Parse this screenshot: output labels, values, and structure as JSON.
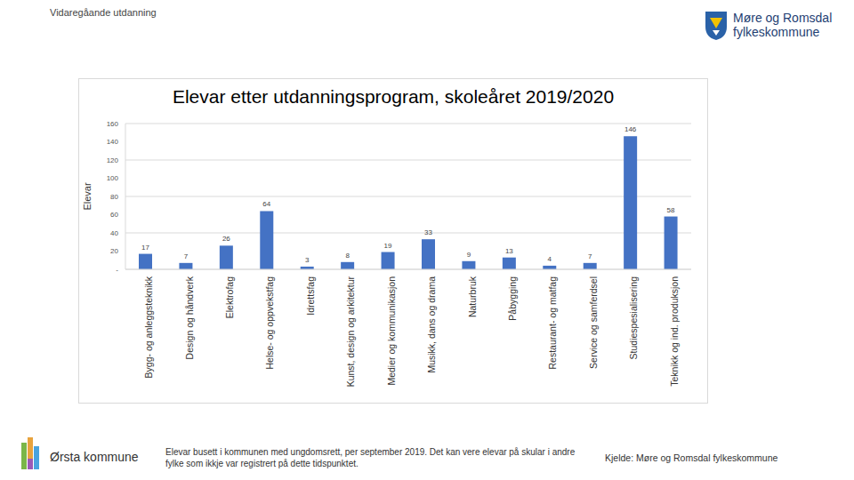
{
  "chart_data": {
    "type": "bar",
    "title": "Elevar etter utdanningsprogram, skoleåret 2019/2020",
    "y_label": "Elevar",
    "categories": [
      "Bygg- og anleggsteknikk",
      "Design og håndverk",
      "Elektrofag",
      "Helse- og oppvekstfag",
      "Idrettsfag",
      "Kunst, design og arkitektur",
      "Medier og kommunikasjon",
      "Musikk, dans og drama",
      "Naturbruk",
      "Påbygging",
      "Restaurant- og matfag",
      "Service og samferdsel",
      "Studiespesialisering",
      "Teknikk og ind. produksjon"
    ],
    "values": [
      17,
      7,
      26,
      64,
      3,
      8,
      19,
      33,
      9,
      13,
      4,
      7,
      146,
      58
    ],
    "color": "#4472c4",
    "ylim": [
      0,
      160
    ],
    "yticks": [
      {
        "value": 0,
        "label": "-"
      },
      20,
      40,
      60,
      80,
      100,
      120,
      140,
      160
    ],
    "grid": true,
    "data_labels": true
  },
  "page": {
    "header": "Vidaregåande utdanning",
    "logo_text": [
      "Møre og Romsdal",
      "fylkeskommune"
    ],
    "municipality": "Ørsta kommune",
    "note": "Elevar busett i kommunen med ungdomsrett, per september 2019. Det kan vere elevar på skular i andre fylke som ikkje var registrert på dette tidspunktet.",
    "source": "Kjelde: Møre og Romsdal fylkeskommune"
  }
}
